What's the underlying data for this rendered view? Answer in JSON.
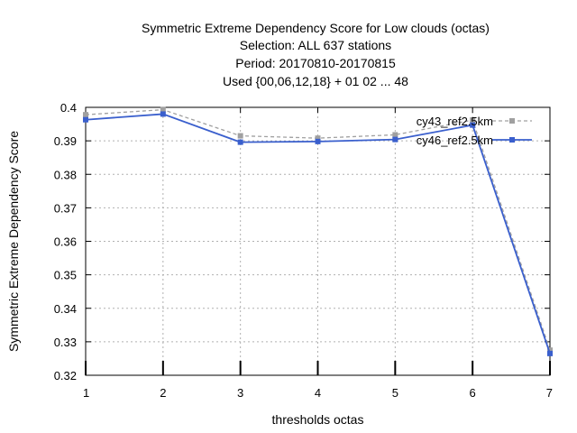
{
  "chart_data": {
    "type": "line",
    "title_lines": [
      "Symmetric Extreme Dependency Score  for Low clouds (octas)",
      "Selection: ALL    637 stations",
      "Period: 20170810-20170815",
      "Used {00,06,12,18} + 01 02 ... 48"
    ],
    "xlabel": "thresholds octas",
    "ylabel": "Symmetric Extreme Dependency Score",
    "x": [
      1,
      2,
      3,
      4,
      5,
      6,
      7
    ],
    "xlim": [
      1,
      7
    ],
    "ylim": [
      0.32,
      0.4
    ],
    "yticks": [
      "0.32",
      "0.33",
      "0.34",
      "0.35",
      "0.36",
      "0.37",
      "0.38",
      "0.39",
      "0.4"
    ],
    "xticks": [
      "1",
      "2",
      "3",
      "4",
      "5",
      "6",
      "7"
    ],
    "grid": true,
    "legend_position": "top-right",
    "series": [
      {
        "name": "cy43_ref2.5km",
        "color": "#a0a0a0",
        "style": "dashed",
        "values": [
          0.3978,
          0.3993,
          0.3915,
          0.3908,
          0.3918,
          0.3962,
          0.3275
        ]
      },
      {
        "name": "cy46_ref2.5km",
        "color": "#3a5fcd",
        "style": "solid",
        "values": [
          0.3963,
          0.398,
          0.3896,
          0.3898,
          0.3904,
          0.3947,
          0.3265
        ]
      }
    ]
  }
}
